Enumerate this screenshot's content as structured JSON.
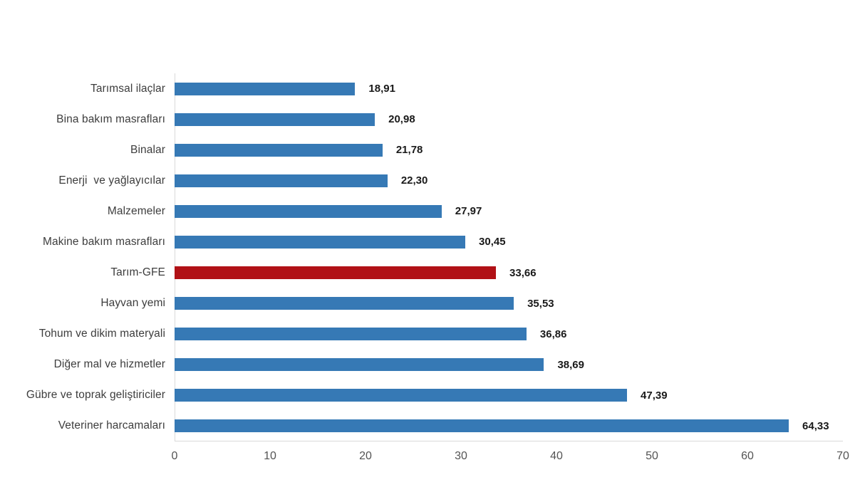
{
  "chart_data": {
    "type": "bar",
    "orientation": "horizontal",
    "categories": [
      "Tarımsal ilaçlar",
      "Bina bakım masrafları",
      "Binalar",
      "Enerji  ve yağlayıcılar",
      "Malzemeler",
      "Makine bakım masrafları",
      "Tarım-GFE",
      "Hayvan yemi",
      "Tohum ve dikim materyali",
      "Diğer mal ve hizmetler",
      "Gübre ve toprak geliştiriciler",
      "Veteriner harcamaları"
    ],
    "values": [
      18.91,
      20.98,
      21.78,
      22.3,
      27.97,
      30.45,
      33.66,
      35.53,
      36.86,
      38.69,
      47.39,
      64.33
    ],
    "value_labels": [
      "18,91",
      "20,98",
      "21,78",
      "22,30",
      "27,97",
      "30,45",
      "33,66",
      "35,53",
      "36,86",
      "38,69",
      "47,39",
      "64,33"
    ],
    "highlight_index": 6,
    "highlight_category": "Tarım-GFE",
    "xlim": [
      0,
      70
    ],
    "x_ticks": [
      "0",
      "10",
      "20",
      "30",
      "40",
      "50",
      "60",
      "70"
    ],
    "bar_color": "#3679B5",
    "highlight_color": "#B11116",
    "axis_color": "#D9D9D9",
    "grid": false,
    "legend": false,
    "data_labels_bold": true
  }
}
